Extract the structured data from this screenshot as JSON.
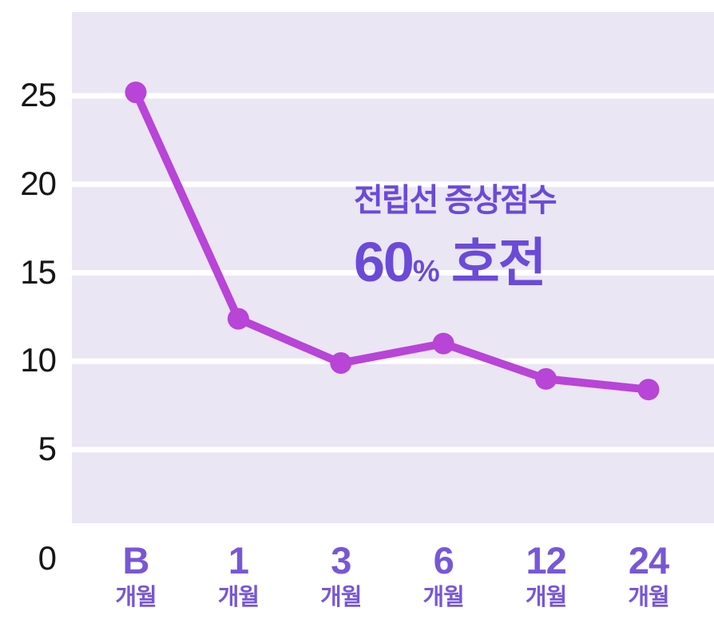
{
  "chart_data": {
    "type": "line",
    "title": "",
    "categories": [
      "B",
      "1",
      "3",
      "6",
      "12",
      "24"
    ],
    "category_unit": "개월",
    "values": [
      25.2,
      12.4,
      9.9,
      11,
      9,
      8.4
    ],
    "y_ticks": [
      25,
      20,
      15,
      10,
      5,
      0
    ],
    "ylim": [
      0,
      29
    ],
    "xlabel": "",
    "ylabel": "",
    "grid": "horizontal white bands on lavender background",
    "legend": "none",
    "colors": {
      "line": "#b844d8",
      "marker": "#b844d8",
      "plot_background": "#eae6f3",
      "gridline": "#ffffff",
      "x_label": "#7857d6",
      "y_label": "#161616",
      "annotation": "#6b4ad8"
    },
    "annotation": {
      "line1": "전립선 증상점수",
      "value": "60",
      "percent": "%",
      "suffix": "호전"
    }
  }
}
